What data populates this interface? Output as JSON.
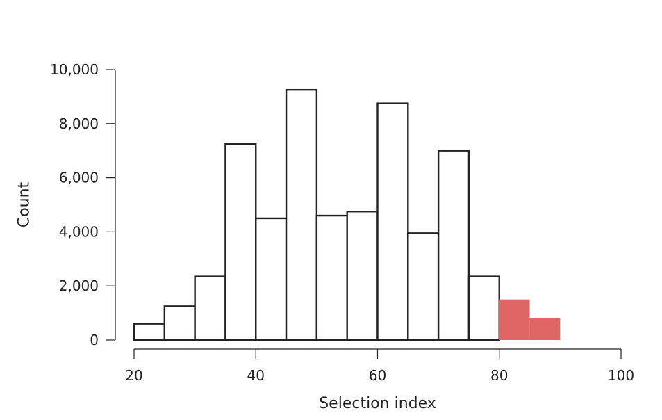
{
  "chart_data": {
    "type": "bar",
    "subtype": "histogram",
    "xlabel": "Selection index",
    "ylabel": "Count",
    "xlim": [
      20,
      100
    ],
    "ylim": [
      0,
      10000
    ],
    "x_ticks": [
      "20",
      "40",
      "60",
      "80",
      "100"
    ],
    "y_ticks": [
      "0",
      "2,000",
      "4,000",
      "6,000",
      "8,000",
      "10,000"
    ],
    "grid": false,
    "bin_width": 5,
    "bins": [
      {
        "start": 20,
        "end": 25,
        "count": 600,
        "highlight": false
      },
      {
        "start": 25,
        "end": 30,
        "count": 1250,
        "highlight": false
      },
      {
        "start": 30,
        "end": 35,
        "count": 2350,
        "highlight": false
      },
      {
        "start": 35,
        "end": 40,
        "count": 7250,
        "highlight": false
      },
      {
        "start": 40,
        "end": 45,
        "count": 4500,
        "highlight": false
      },
      {
        "start": 45,
        "end": 50,
        "count": 9250,
        "highlight": false
      },
      {
        "start": 50,
        "end": 55,
        "count": 4600,
        "highlight": false
      },
      {
        "start": 55,
        "end": 60,
        "count": 4750,
        "highlight": false
      },
      {
        "start": 60,
        "end": 65,
        "count": 8750,
        "highlight": false
      },
      {
        "start": 65,
        "end": 70,
        "count": 3950,
        "highlight": false
      },
      {
        "start": 70,
        "end": 75,
        "count": 7000,
        "highlight": false
      },
      {
        "start": 75,
        "end": 80,
        "count": 2350,
        "highlight": false
      },
      {
        "start": 80,
        "end": 85,
        "count": 1500,
        "highlight": true
      },
      {
        "start": 85,
        "end": 90,
        "count": 800,
        "highlight": true
      }
    ],
    "colors": {
      "bar_fill": "#ffffff",
      "bar_stroke": "#222222",
      "highlight_fill": "#e06666",
      "axis": "#222222"
    }
  }
}
